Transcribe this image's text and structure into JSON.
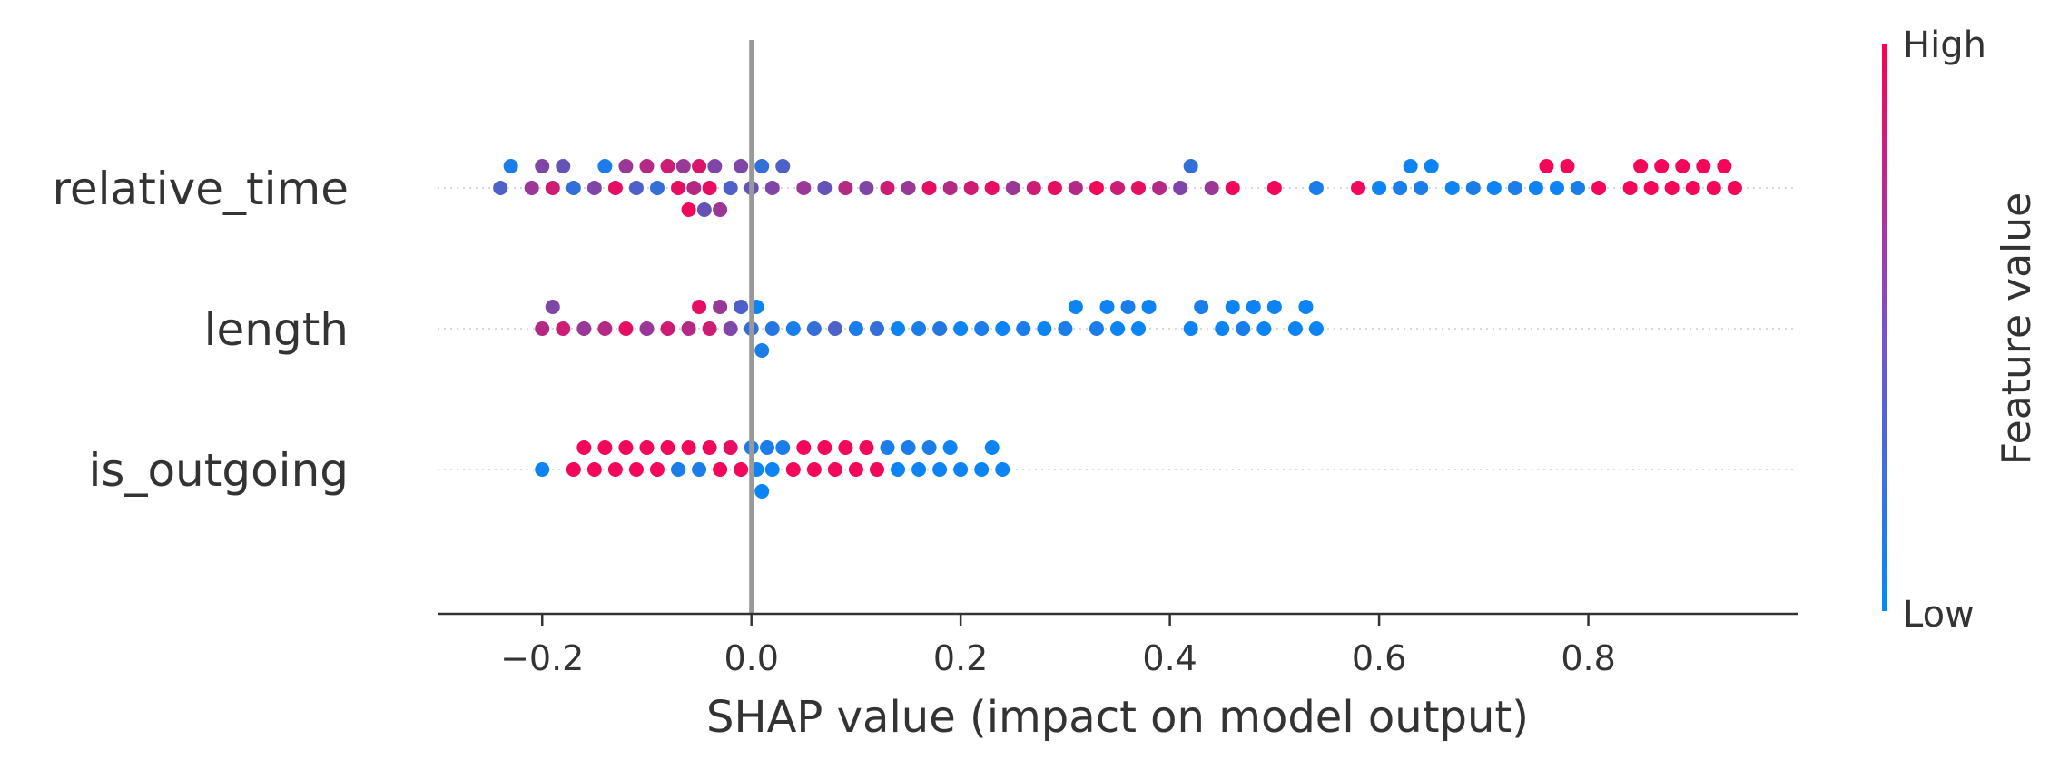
{
  "chart_data": {
    "type": "scatter",
    "subtype": "shap-beeswarm",
    "xlabel": "SHAP value (impact on model output)",
    "xlim": [
      -0.3,
      1.0
    ],
    "xticks": [
      "−0.2",
      "0.0",
      "0.2",
      "0.4",
      "0.6",
      "0.8"
    ],
    "xtick_values": [
      -0.2,
      0.0,
      0.2,
      0.4,
      0.6,
      0.8
    ],
    "zero_line": 0.0,
    "features": [
      "relative_time",
      "length",
      "is_outgoing"
    ],
    "colorbar": {
      "label": "Feature value",
      "high_label": "High",
      "low_label": "Low",
      "high_color": "#ff0052",
      "low_color": "#008bfb"
    },
    "series": [
      {
        "feature": "relative_time",
        "points": [
          {
            "shap": -0.24,
            "v": 0.3
          },
          {
            "shap": -0.23,
            "v": 0.1
          },
          {
            "shap": -0.21,
            "v": 0.6
          },
          {
            "shap": -0.2,
            "v": 0.5
          },
          {
            "shap": -0.19,
            "v": 0.8
          },
          {
            "shap": -0.18,
            "v": 0.4
          },
          {
            "shap": -0.17,
            "v": 0.2
          },
          {
            "shap": -0.15,
            "v": 0.5
          },
          {
            "shap": -0.14,
            "v": 0.1
          },
          {
            "shap": -0.13,
            "v": 0.9
          },
          {
            "shap": -0.12,
            "v": 0.6
          },
          {
            "shap": -0.11,
            "v": 0.3
          },
          {
            "shap": -0.1,
            "v": 0.7
          },
          {
            "shap": -0.09,
            "v": 0.2
          },
          {
            "shap": -0.08,
            "v": 0.8
          },
          {
            "shap": -0.07,
            "v": 0.9
          },
          {
            "shap": -0.065,
            "v": 0.6
          },
          {
            "shap": -0.06,
            "v": 0.95
          },
          {
            "shap": -0.055,
            "v": 0.7
          },
          {
            "shap": -0.05,
            "v": 0.85
          },
          {
            "shap": -0.045,
            "v": 0.4
          },
          {
            "shap": -0.04,
            "v": 0.9
          },
          {
            "shap": -0.035,
            "v": 0.5
          },
          {
            "shap": -0.03,
            "v": 0.6
          },
          {
            "shap": -0.02,
            "v": 0.3
          },
          {
            "shap": -0.01,
            "v": 0.5
          },
          {
            "shap": 0.0,
            "v": 0.4
          },
          {
            "shap": 0.01,
            "v": 0.2
          },
          {
            "shap": 0.02,
            "v": 0.5
          },
          {
            "shap": 0.03,
            "v": 0.3
          },
          {
            "shap": 0.05,
            "v": 0.6
          },
          {
            "shap": 0.07,
            "v": 0.4
          },
          {
            "shap": 0.09,
            "v": 0.7
          },
          {
            "shap": 0.11,
            "v": 0.5
          },
          {
            "shap": 0.13,
            "v": 0.8
          },
          {
            "shap": 0.15,
            "v": 0.6
          },
          {
            "shap": 0.17,
            "v": 0.9
          },
          {
            "shap": 0.19,
            "v": 0.7
          },
          {
            "shap": 0.21,
            "v": 0.8
          },
          {
            "shap": 0.23,
            "v": 0.9
          },
          {
            "shap": 0.25,
            "v": 0.6
          },
          {
            "shap": 0.27,
            "v": 0.8
          },
          {
            "shap": 0.29,
            "v": 0.9
          },
          {
            "shap": 0.31,
            "v": 0.7
          },
          {
            "shap": 0.33,
            "v": 0.95
          },
          {
            "shap": 0.35,
            "v": 0.8
          },
          {
            "shap": 0.37,
            "v": 0.9
          },
          {
            "shap": 0.39,
            "v": 0.7
          },
          {
            "shap": 0.41,
            "v": 0.5
          },
          {
            "shap": 0.42,
            "v": 0.2
          },
          {
            "shap": 0.44,
            "v": 0.6
          },
          {
            "shap": 0.46,
            "v": 0.95
          },
          {
            "shap": 0.5,
            "v": 0.95
          },
          {
            "shap": 0.54,
            "v": 0.1
          },
          {
            "shap": 0.58,
            "v": 0.95
          },
          {
            "shap": 0.6,
            "v": 0.05
          },
          {
            "shap": 0.62,
            "v": 0.1
          },
          {
            "shap": 0.63,
            "v": 0.05
          },
          {
            "shap": 0.64,
            "v": 0.1
          },
          {
            "shap": 0.65,
            "v": 0.05
          },
          {
            "shap": 0.67,
            "v": 0.05
          },
          {
            "shap": 0.69,
            "v": 0.1
          },
          {
            "shap": 0.71,
            "v": 0.05
          },
          {
            "shap": 0.73,
            "v": 0.1
          },
          {
            "shap": 0.75,
            "v": 0.05
          },
          {
            "shap": 0.76,
            "v": 0.95
          },
          {
            "shap": 0.77,
            "v": 0.05
          },
          {
            "shap": 0.78,
            "v": 0.95
          },
          {
            "shap": 0.79,
            "v": 0.1
          },
          {
            "shap": 0.81,
            "v": 0.95
          },
          {
            "shap": 0.84,
            "v": 0.95
          },
          {
            "shap": 0.85,
            "v": 0.95
          },
          {
            "shap": 0.86,
            "v": 0.95
          },
          {
            "shap": 0.87,
            "v": 0.95
          },
          {
            "shap": 0.88,
            "v": 0.95
          },
          {
            "shap": 0.89,
            "v": 0.95
          },
          {
            "shap": 0.9,
            "v": 0.95
          },
          {
            "shap": 0.91,
            "v": 0.95
          },
          {
            "shap": 0.92,
            "v": 0.95
          },
          {
            "shap": 0.93,
            "v": 0.95
          },
          {
            "shap": 0.94,
            "v": 0.95
          }
        ]
      },
      {
        "feature": "length",
        "points": [
          {
            "shap": -0.2,
            "v": 0.7
          },
          {
            "shap": -0.19,
            "v": 0.5
          },
          {
            "shap": -0.18,
            "v": 0.8
          },
          {
            "shap": -0.16,
            "v": 0.6
          },
          {
            "shap": -0.14,
            "v": 0.7
          },
          {
            "shap": -0.12,
            "v": 0.9
          },
          {
            "shap": -0.1,
            "v": 0.6
          },
          {
            "shap": -0.08,
            "v": 0.8
          },
          {
            "shap": -0.06,
            "v": 0.7
          },
          {
            "shap": -0.05,
            "v": 0.9
          },
          {
            "shap": -0.04,
            "v": 0.8
          },
          {
            "shap": -0.03,
            "v": 0.6
          },
          {
            "shap": -0.02,
            "v": 0.5
          },
          {
            "shap": -0.01,
            "v": 0.3
          },
          {
            "shap": 0.0,
            "v": 0.2
          },
          {
            "shap": 0.005,
            "v": 0.05
          },
          {
            "shap": 0.01,
            "v": 0.1
          },
          {
            "shap": 0.02,
            "v": 0.15
          },
          {
            "shap": 0.04,
            "v": 0.1
          },
          {
            "shap": 0.06,
            "v": 0.2
          },
          {
            "shap": 0.08,
            "v": 0.3
          },
          {
            "shap": 0.1,
            "v": 0.1
          },
          {
            "shap": 0.12,
            "v": 0.2
          },
          {
            "shap": 0.14,
            "v": 0.05
          },
          {
            "shap": 0.16,
            "v": 0.1
          },
          {
            "shap": 0.18,
            "v": 0.15
          },
          {
            "shap": 0.2,
            "v": 0.05
          },
          {
            "shap": 0.22,
            "v": 0.1
          },
          {
            "shap": 0.24,
            "v": 0.05
          },
          {
            "shap": 0.26,
            "v": 0.1
          },
          {
            "shap": 0.28,
            "v": 0.05
          },
          {
            "shap": 0.3,
            "v": 0.1
          },
          {
            "shap": 0.31,
            "v": 0.05
          },
          {
            "shap": 0.33,
            "v": 0.1
          },
          {
            "shap": 0.34,
            "v": 0.05
          },
          {
            "shap": 0.35,
            "v": 0.05
          },
          {
            "shap": 0.36,
            "v": 0.1
          },
          {
            "shap": 0.37,
            "v": 0.05
          },
          {
            "shap": 0.38,
            "v": 0.05
          },
          {
            "shap": 0.42,
            "v": 0.05
          },
          {
            "shap": 0.43,
            "v": 0.1
          },
          {
            "shap": 0.45,
            "v": 0.05
          },
          {
            "shap": 0.46,
            "v": 0.05
          },
          {
            "shap": 0.47,
            "v": 0.1
          },
          {
            "shap": 0.48,
            "v": 0.05
          },
          {
            "shap": 0.49,
            "v": 0.05
          },
          {
            "shap": 0.5,
            "v": 0.05
          },
          {
            "shap": 0.52,
            "v": 0.05
          },
          {
            "shap": 0.53,
            "v": 0.05
          },
          {
            "shap": 0.54,
            "v": 0.05
          }
        ]
      },
      {
        "feature": "is_outgoing",
        "points": [
          {
            "shap": -0.2,
            "v": 0.05
          },
          {
            "shap": -0.17,
            "v": 0.95
          },
          {
            "shap": -0.16,
            "v": 0.95
          },
          {
            "shap": -0.15,
            "v": 0.95
          },
          {
            "shap": -0.14,
            "v": 0.95
          },
          {
            "shap": -0.13,
            "v": 0.95
          },
          {
            "shap": -0.12,
            "v": 0.95
          },
          {
            "shap": -0.11,
            "v": 0.95
          },
          {
            "shap": -0.1,
            "v": 0.95
          },
          {
            "shap": -0.09,
            "v": 0.95
          },
          {
            "shap": -0.08,
            "v": 0.95
          },
          {
            "shap": -0.07,
            "v": 0.1
          },
          {
            "shap": -0.06,
            "v": 0.95
          },
          {
            "shap": -0.05,
            "v": 0.1
          },
          {
            "shap": -0.04,
            "v": 0.95
          },
          {
            "shap": -0.03,
            "v": 0.95
          },
          {
            "shap": -0.02,
            "v": 0.9
          },
          {
            "shap": -0.01,
            "v": 0.95
          },
          {
            "shap": 0.0,
            "v": 0.1
          },
          {
            "shap": 0.005,
            "v": 0.05
          },
          {
            "shap": 0.01,
            "v": 0.05
          },
          {
            "shap": 0.015,
            "v": 0.1
          },
          {
            "shap": 0.02,
            "v": 0.05
          },
          {
            "shap": 0.03,
            "v": 0.1
          },
          {
            "shap": 0.04,
            "v": 0.95
          },
          {
            "shap": 0.05,
            "v": 0.95
          },
          {
            "shap": 0.06,
            "v": 0.95
          },
          {
            "shap": 0.07,
            "v": 0.95
          },
          {
            "shap": 0.08,
            "v": 0.95
          },
          {
            "shap": 0.09,
            "v": 0.95
          },
          {
            "shap": 0.1,
            "v": 0.95
          },
          {
            "shap": 0.11,
            "v": 0.95
          },
          {
            "shap": 0.12,
            "v": 0.95
          },
          {
            "shap": 0.13,
            "v": 0.1
          },
          {
            "shap": 0.14,
            "v": 0.05
          },
          {
            "shap": 0.15,
            "v": 0.1
          },
          {
            "shap": 0.16,
            "v": 0.05
          },
          {
            "shap": 0.17,
            "v": 0.1
          },
          {
            "shap": 0.18,
            "v": 0.05
          },
          {
            "shap": 0.19,
            "v": 0.05
          },
          {
            "shap": 0.2,
            "v": 0.05
          },
          {
            "shap": 0.22,
            "v": 0.05
          },
          {
            "shap": 0.23,
            "v": 0.05
          },
          {
            "shap": 0.24,
            "v": 0.05
          }
        ]
      }
    ]
  }
}
